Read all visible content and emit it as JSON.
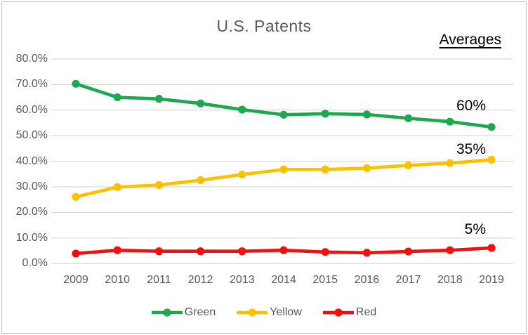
{
  "chart_data": {
    "type": "line",
    "title": "U.S. Patents",
    "x": [
      2009,
      2010,
      2011,
      2012,
      2013,
      2014,
      2015,
      2016,
      2017,
      2018,
      2019
    ],
    "xlabel": "",
    "ylabel": "",
    "ylim": [
      0,
      80
    ],
    "ytick_step": 10,
    "ytick_labels_top_to_bottom": [
      "80.0%",
      "70.0%",
      "60.0%",
      "50.0%",
      "40.0%",
      "30.0%",
      "20.0%",
      "10.0%",
      "0.0%"
    ],
    "grid": "horizontal",
    "legend_position": "bottom",
    "annotations": {
      "header": "Averages"
    },
    "series": [
      {
        "name": "Green",
        "color": "#1FA750",
        "average_label": "60%",
        "values": [
          70.3,
          65.0,
          64.4,
          62.6,
          60.2,
          58.2,
          58.6,
          58.3,
          56.8,
          55.5,
          53.4
        ]
      },
      {
        "name": "Yellow",
        "color": "#FFC000",
        "average_label": "35%",
        "values": [
          26.1,
          29.9,
          30.7,
          32.6,
          34.8,
          36.8,
          36.8,
          37.3,
          38.4,
          39.3,
          40.6
        ]
      },
      {
        "name": "Red",
        "color": "#F20F0F",
        "average_label": "5%",
        "values": [
          3.9,
          5.2,
          4.8,
          4.8,
          4.8,
          5.2,
          4.5,
          4.2,
          4.7,
          5.2,
          6.1
        ]
      }
    ]
  },
  "colors": {
    "text": "#595959",
    "annotation": "#000000",
    "gridline": "#D9D9D9",
    "border": "#BFBFBF",
    "background": "#FFFFFF"
  }
}
